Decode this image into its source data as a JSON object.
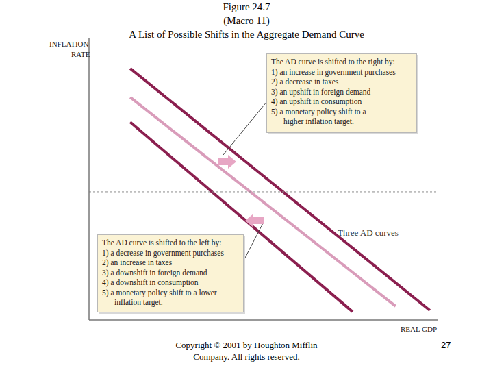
{
  "chart_data": {
    "type": "line",
    "title": [
      "Figure 24.7",
      "(Macro 11)",
      "A List of Possible Shifts in the Aggregate Demand Curve"
    ],
    "x_label": "REAL GDP",
    "y_label": "INFLATION RATE",
    "xlim": [
      0,
      100
    ],
    "ylim": [
      0,
      100
    ],
    "tick_labels": false,
    "grid": false,
    "series": [
      {
        "color": "#8b1f4f",
        "x": [
          11.8,
          97.6
        ],
        "values": [
          89.1,
          3.4
        ]
      },
      {
        "color": "#d99cba",
        "x": [
          11.8,
          87.8
        ],
        "values": [
          78.9,
          4.9
        ]
      },
      {
        "color": "#8b1f4f",
        "x": [
          11.8,
          75.5
        ],
        "values": [
          70.1,
          2.9
        ]
      },
      {
        "color": "#8c8c8c",
        "line_style": "dashed",
        "x": [
          0,
          100
        ],
        "values": [
          45.4,
          45.4
        ]
      }
    ],
    "curve_label": "Three AD curves",
    "annotations": [
      {
        "title": "The AD curve is shifted to the right by:",
        "items": [
          "1) an increase in government purchases",
          "2) a decrease in taxes",
          "3) an upshift in foreign demand",
          "4) an upshift in consumption",
          "5) a monetary policy shift to a",
          "higher inflation target."
        ]
      },
      {
        "title": "The AD curve is shifted to the left by:",
        "items": [
          "1) a decrease in government purchases",
          "2) an increase in taxes",
          "3) a downshift in foreign demand",
          "4) a downshift in consumption",
          "5) a monetary policy shift to a lower",
          "inflation target."
        ]
      }
    ],
    "footer": "Copyright © 2001 by Houghton Mifflin Company. All rights reserved.",
    "page_number": 27
  }
}
